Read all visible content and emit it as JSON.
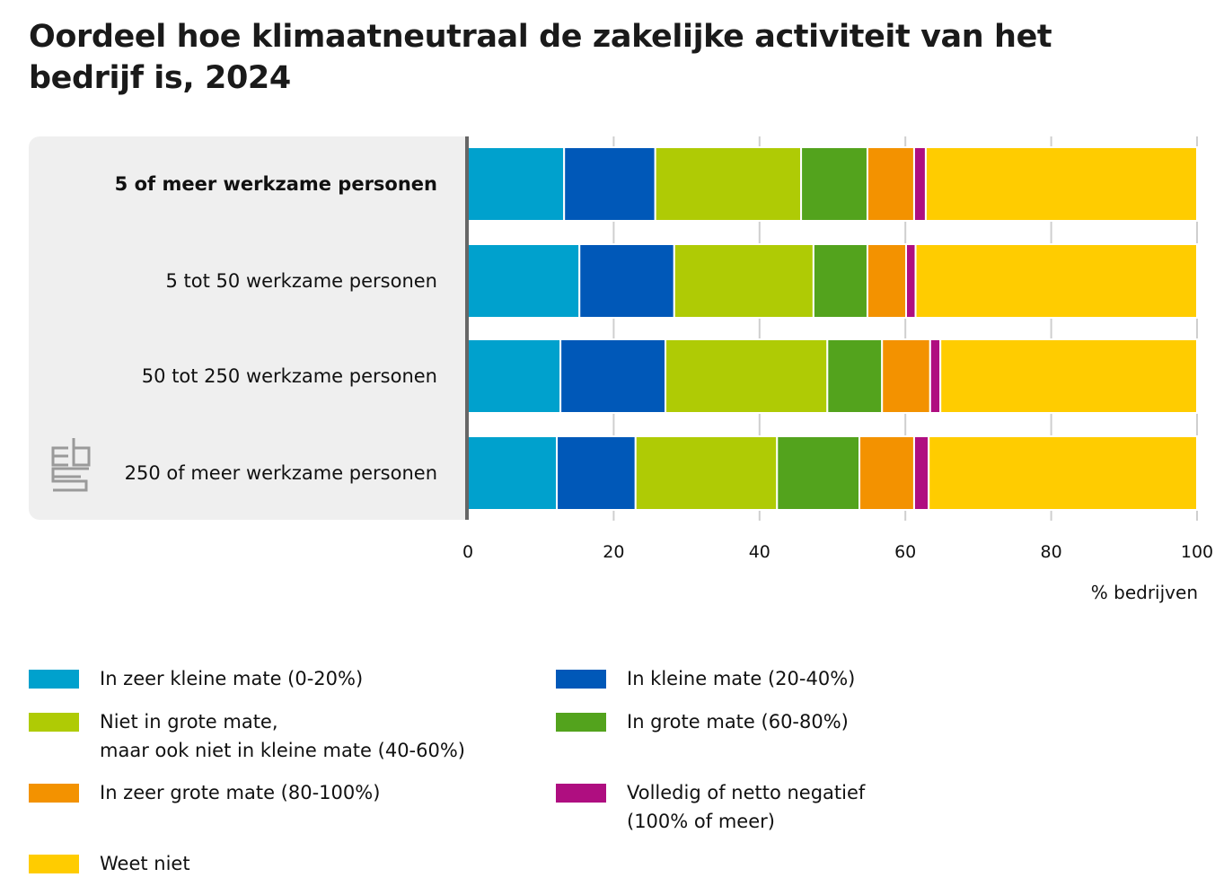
{
  "title": "Oordeel hoe klimaatneutraal de zakelijke activiteit van het bedrijf is, 2024",
  "axis_title": "% bedrijven",
  "logo": "cbs-logo-icon",
  "chart_data": {
    "type": "bar",
    "orientation": "horizontal",
    "stacked": true,
    "title": "Oordeel hoe klimaatneutraal de zakelijke activiteit van het bedrijf is, 2024",
    "xlabel": "% bedrijven",
    "ylabel": "",
    "xlim": [
      0,
      100
    ],
    "xticks": [
      0,
      20,
      40,
      60,
      80,
      100
    ],
    "grid": true,
    "legend_position": "bottom",
    "categories": [
      "5 of meer werkzame personen",
      "5 tot 50 werkzame personen",
      "50 tot 250 werkzame personen",
      "250 of meer werkzame personen"
    ],
    "category_bold": [
      true,
      false,
      false,
      false
    ],
    "series": [
      {
        "name": "In zeer kleine mate (0-20%)",
        "color": "#00a1cd",
        "values": [
          13.2,
          15.3,
          12.7,
          12.2
        ]
      },
      {
        "name": "In kleine mate (20-40%)",
        "color": "#0058b8",
        "values": [
          12.5,
          13.0,
          14.4,
          10.8
        ]
      },
      {
        "name": "Niet in grote mate,\nmaar ook niet in kleine mate (40-60%)",
        "color": "#afcb05",
        "values": [
          20.0,
          19.1,
          22.2,
          19.4
        ]
      },
      {
        "name": "In grote mate (60-80%)",
        "color": "#53a31d",
        "values": [
          9.1,
          7.4,
          7.5,
          11.3
        ]
      },
      {
        "name": "In zeer grote mate (80-100%)",
        "color": "#f39200",
        "values": [
          6.4,
          5.3,
          6.6,
          7.5
        ]
      },
      {
        "name": "Volledig of netto negatief\n(100% of meer)",
        "color": "#af0e80",
        "values": [
          1.6,
          1.3,
          1.4,
          2.0
        ]
      },
      {
        "name": "Weet niet",
        "color": "#ffcc00",
        "values": [
          37.2,
          38.6,
          35.2,
          36.8
        ]
      }
    ]
  }
}
